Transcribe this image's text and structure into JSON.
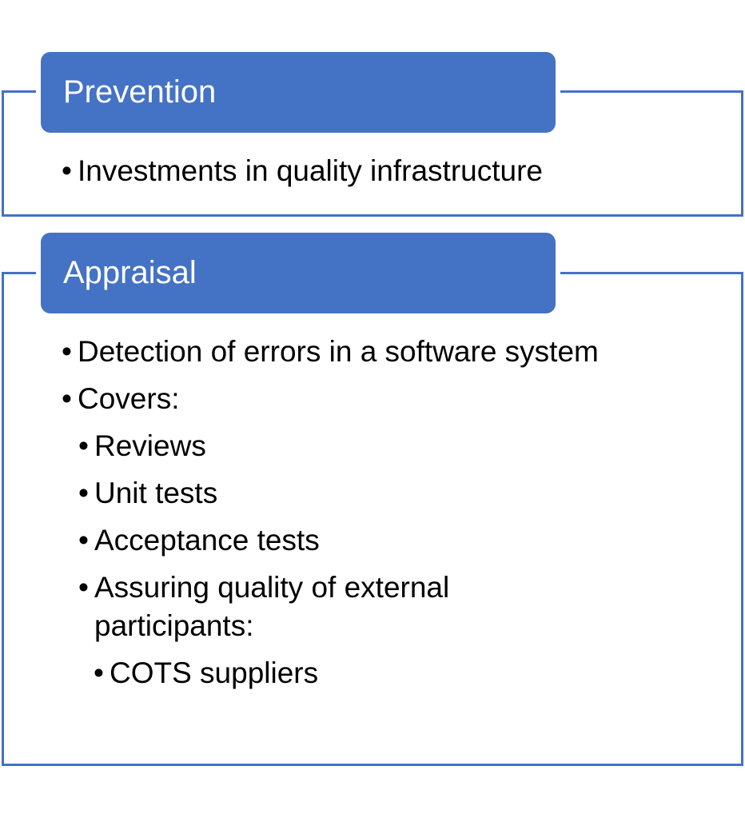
{
  "sections": [
    {
      "title": "Prevention",
      "items": [
        {
          "level": 1,
          "text": "Investments in quality infrastructure"
        }
      ]
    },
    {
      "title": "Appraisal",
      "items": [
        {
          "level": 1,
          "text": "Detection of errors in a software system"
        },
        {
          "level": 1,
          "text": "Covers:"
        },
        {
          "level": 2,
          "text": "Reviews"
        },
        {
          "level": 2,
          "text": "Unit tests"
        },
        {
          "level": 2,
          "text": "Acceptance tests"
        },
        {
          "level": 2,
          "text": "Assuring quality of external participants:"
        },
        {
          "level": 3,
          "text": "COTS suppliers"
        }
      ]
    }
  ],
  "bullet_char": "•",
  "colors": {
    "accent": "#4472c4",
    "header_text": "#ffffff",
    "body_text": "#000000"
  }
}
